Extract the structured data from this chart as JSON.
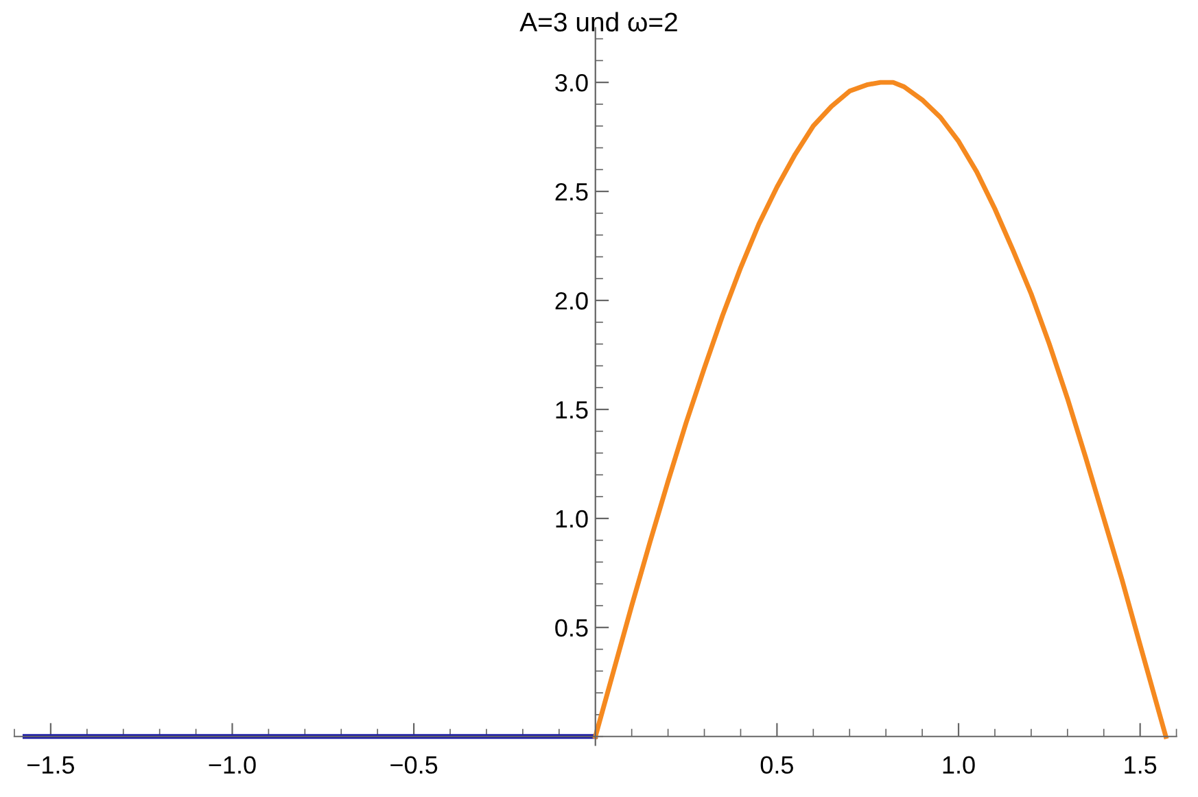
{
  "chart_data": {
    "type": "line",
    "title": "A=3 und ω=2",
    "xlim": [
      -1.6,
      1.6
    ],
    "ylim": [
      -0.04,
      3.25
    ],
    "xticks": [
      {
        "value": -1.5,
        "label": "−1.5"
      },
      {
        "value": -1.0,
        "label": "−1.0"
      },
      {
        "value": -0.5,
        "label": "−0.5"
      },
      {
        "value": 0.5,
        "label": "0.5"
      },
      {
        "value": 1.0,
        "label": "1.0"
      },
      {
        "value": 1.5,
        "label": "1.5"
      }
    ],
    "yticks": [
      {
        "value": 0.5,
        "label": "0.5"
      },
      {
        "value": 1.0,
        "label": "1.0"
      },
      {
        "value": 1.5,
        "label": "1.5"
      },
      {
        "value": 2.0,
        "label": "2.0"
      },
      {
        "value": 2.5,
        "label": "2.5"
      },
      {
        "value": 3.0,
        "label": "3.0"
      }
    ],
    "grid": false,
    "marker": "none",
    "line_style": "solid",
    "series": [
      {
        "color": "#1f1fa8",
        "x": [
          -1.5708,
          -1.0,
          -0.5,
          0.0
        ],
        "values": [
          0,
          0,
          0,
          0
        ]
      },
      {
        "color": "#f5891f",
        "x": [
          0,
          0.05,
          0.1,
          0.15,
          0.2,
          0.25,
          0.3,
          0.35,
          0.4,
          0.45,
          0.5,
          0.55,
          0.6,
          0.65,
          0.7,
          0.75,
          0.785,
          0.82,
          0.85,
          0.9,
          0.95,
          1.0,
          1.05,
          1.1,
          1.15,
          1.2,
          1.25,
          1.3,
          1.35,
          1.4,
          1.45,
          1.5,
          1.5708
        ],
        "values": [
          0,
          0.3,
          0.6,
          0.89,
          1.17,
          1.44,
          1.69,
          1.93,
          2.15,
          2.35,
          2.52,
          2.67,
          2.8,
          2.89,
          2.96,
          2.99,
          3.0,
          3.0,
          2.98,
          2.92,
          2.84,
          2.73,
          2.59,
          2.42,
          2.23,
          2.03,
          1.8,
          1.55,
          1.28,
          1.0,
          0.72,
          0.42,
          0
        ]
      }
    ]
  }
}
